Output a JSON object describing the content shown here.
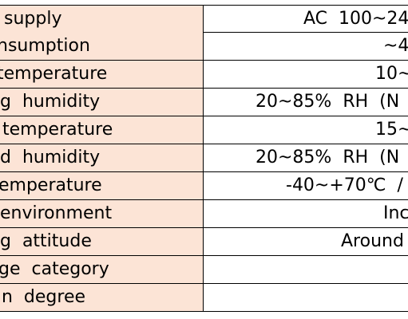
{
  "table": {
    "rows": [
      [
        " supply",
        "AC  100~24"
      ],
      [
        "nsumption",
        "~4"
      ],
      [
        "temperature",
        "10~"
      ],
      [
        "g  humidity",
        "20~85%  RH  (N"
      ],
      [
        " temperature",
        "15~"
      ],
      [
        "d  humidity",
        "20~85%  RH  (N"
      ],
      [
        "emperature",
        "-40~+70℃  /"
      ],
      [
        "environment",
        "Inc"
      ],
      [
        "g  attitude",
        "Around"
      ],
      [
        "ge  category",
        ""
      ],
      [
        "n  degree",
        ""
      ]
    ]
  }
}
